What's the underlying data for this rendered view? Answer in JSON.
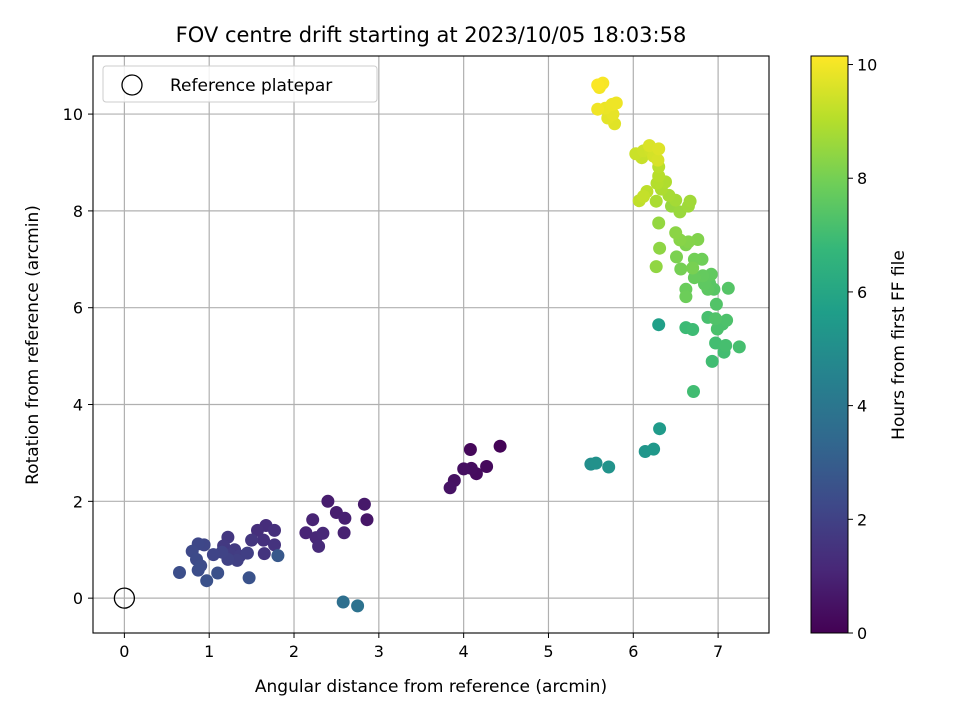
{
  "chart_data": {
    "type": "scatter",
    "title": "FOV centre drift starting at 2023/10/05 18:03:58",
    "xlabel": "Angular distance from reference (arcmin)",
    "ylabel": "Rotation from reference (arcmin)",
    "xlim": [
      -0.37,
      7.6
    ],
    "ylim": [
      -0.72,
      11.2
    ],
    "xticks": [
      0,
      1,
      2,
      3,
      4,
      5,
      6,
      7
    ],
    "yticks": [
      0,
      2,
      4,
      6,
      8,
      10
    ],
    "grid": true,
    "legend": {
      "placement": "upper-left",
      "entries": [
        "Reference platepar"
      ]
    },
    "reference_point": {
      "x": 0,
      "y": 0,
      "label": "Reference platepar"
    },
    "colorbar": {
      "label": "Hours from first FF file",
      "colormap": "viridis",
      "range": [
        0,
        10.15
      ],
      "ticks": [
        0,
        2,
        4,
        6,
        8,
        10
      ]
    },
    "series": [
      {
        "points": [
          {
            "x": 4.43,
            "y": 3.14,
            "c": 0.1
          },
          {
            "x": 4.08,
            "y": 3.07,
            "c": 0.2
          },
          {
            "x": 4.27,
            "y": 2.72,
            "c": 0.25
          },
          {
            "x": 4.15,
            "y": 2.57,
            "c": 0.3
          },
          {
            "x": 4.09,
            "y": 2.68,
            "c": 0.35
          },
          {
            "x": 4.0,
            "y": 2.67,
            "c": 0.4
          },
          {
            "x": 3.89,
            "y": 2.43,
            "c": 0.45
          },
          {
            "x": 3.84,
            "y": 2.28,
            "c": 0.5
          },
          {
            "x": 2.86,
            "y": 1.62,
            "c": 0.6
          },
          {
            "x": 2.83,
            "y": 1.94,
            "c": 0.7
          },
          {
            "x": 2.4,
            "y": 2.0,
            "c": 0.8
          },
          {
            "x": 2.5,
            "y": 1.77,
            "c": 0.85
          },
          {
            "x": 2.6,
            "y": 1.65,
            "c": 0.9
          },
          {
            "x": 2.59,
            "y": 1.35,
            "c": 0.95
          },
          {
            "x": 2.22,
            "y": 1.62,
            "c": 1.0
          },
          {
            "x": 2.14,
            "y": 1.35,
            "c": 1.05
          },
          {
            "x": 2.26,
            "y": 1.25,
            "c": 1.1
          },
          {
            "x": 2.34,
            "y": 1.34,
            "c": 1.15
          },
          {
            "x": 2.29,
            "y": 1.07,
            "c": 1.2
          },
          {
            "x": 1.67,
            "y": 1.5,
            "c": 1.3
          },
          {
            "x": 1.57,
            "y": 1.4,
            "c": 1.35
          },
          {
            "x": 1.77,
            "y": 1.4,
            "c": 1.4
          },
          {
            "x": 1.64,
            "y": 1.2,
            "c": 1.45
          },
          {
            "x": 1.77,
            "y": 1.1,
            "c": 1.5
          },
          {
            "x": 1.65,
            "y": 0.92,
            "c": 1.55
          },
          {
            "x": 1.5,
            "y": 1.2,
            "c": 1.6
          },
          {
            "x": 1.22,
            "y": 1.26,
            "c": 1.65
          },
          {
            "x": 1.17,
            "y": 1.08,
            "c": 1.7
          },
          {
            "x": 1.3,
            "y": 1.0,
            "c": 1.75
          },
          {
            "x": 1.25,
            "y": 0.9,
            "c": 1.8
          },
          {
            "x": 1.36,
            "y": 0.87,
            "c": 1.85
          },
          {
            "x": 1.45,
            "y": 0.93,
            "c": 1.9
          },
          {
            "x": 1.33,
            "y": 0.78,
            "c": 1.95
          },
          {
            "x": 1.22,
            "y": 0.8,
            "c": 2.0
          },
          {
            "x": 1.15,
            "y": 0.95,
            "c": 2.05
          },
          {
            "x": 1.05,
            "y": 0.9,
            "c": 2.1
          },
          {
            "x": 0.94,
            "y": 1.1,
            "c": 2.15
          },
          {
            "x": 0.87,
            "y": 1.12,
            "c": 2.2
          },
          {
            "x": 0.8,
            "y": 0.97,
            "c": 2.25
          },
          {
            "x": 0.85,
            "y": 0.8,
            "c": 2.3
          },
          {
            "x": 0.9,
            "y": 0.67,
            "c": 2.35
          },
          {
            "x": 0.87,
            "y": 0.58,
            "c": 2.4
          },
          {
            "x": 0.65,
            "y": 0.53,
            "c": 2.45
          },
          {
            "x": 1.1,
            "y": 0.52,
            "c": 2.5
          },
          {
            "x": 0.97,
            "y": 0.36,
            "c": 2.55
          },
          {
            "x": 1.47,
            "y": 0.42,
            "c": 2.6
          },
          {
            "x": 1.81,
            "y": 0.88,
            "c": 2.8
          },
          {
            "x": 2.58,
            "y": -0.08,
            "c": 3.7
          },
          {
            "x": 2.75,
            "y": -0.16,
            "c": 3.8
          },
          {
            "x": 5.5,
            "y": 2.77,
            "c": 5.0
          },
          {
            "x": 5.56,
            "y": 2.79,
            "c": 5.1
          },
          {
            "x": 5.71,
            "y": 2.71,
            "c": 5.2
          },
          {
            "x": 6.14,
            "y": 3.03,
            "c": 5.3
          },
          {
            "x": 6.24,
            "y": 3.08,
            "c": 5.4
          },
          {
            "x": 6.31,
            "y": 3.5,
            "c": 5.5
          },
          {
            "x": 6.3,
            "y": 5.65,
            "c": 5.7
          },
          {
            "x": 6.62,
            "y": 5.59,
            "c": 6.9
          },
          {
            "x": 6.7,
            "y": 5.55,
            "c": 6.95
          },
          {
            "x": 6.71,
            "y": 4.27,
            "c": 7.0
          },
          {
            "x": 6.93,
            "y": 4.89,
            "c": 7.0
          },
          {
            "x": 6.97,
            "y": 5.27,
            "c": 7.05
          },
          {
            "x": 7.07,
            "y": 5.08,
            "c": 7.05
          },
          {
            "x": 7.25,
            "y": 5.19,
            "c": 7.1
          },
          {
            "x": 7.09,
            "y": 5.22,
            "c": 7.1
          },
          {
            "x": 6.88,
            "y": 5.8,
            "c": 7.15
          },
          {
            "x": 6.99,
            "y": 5.56,
            "c": 7.2
          },
          {
            "x": 7.05,
            "y": 5.66,
            "c": 7.2
          },
          {
            "x": 7.1,
            "y": 5.74,
            "c": 7.25
          },
          {
            "x": 6.97,
            "y": 5.77,
            "c": 7.3
          },
          {
            "x": 6.98,
            "y": 6.07,
            "c": 7.35
          },
          {
            "x": 7.12,
            "y": 6.4,
            "c": 7.4
          },
          {
            "x": 6.95,
            "y": 6.38,
            "c": 7.45
          },
          {
            "x": 6.9,
            "y": 6.5,
            "c": 7.5
          },
          {
            "x": 6.88,
            "y": 6.38,
            "c": 7.55
          },
          {
            "x": 6.84,
            "y": 6.49,
            "c": 7.6
          },
          {
            "x": 6.92,
            "y": 6.69,
            "c": 7.65
          },
          {
            "x": 6.82,
            "y": 6.66,
            "c": 7.7
          },
          {
            "x": 6.72,
            "y": 6.62,
            "c": 7.75
          },
          {
            "x": 6.62,
            "y": 6.38,
            "c": 7.8
          },
          {
            "x": 6.62,
            "y": 6.23,
            "c": 7.85
          },
          {
            "x": 6.81,
            "y": 7.0,
            "c": 7.9
          },
          {
            "x": 6.72,
            "y": 7.0,
            "c": 7.95
          },
          {
            "x": 6.56,
            "y": 6.8,
            "c": 8.0
          },
          {
            "x": 6.7,
            "y": 6.82,
            "c": 8.05
          },
          {
            "x": 6.51,
            "y": 7.05,
            "c": 8.1
          },
          {
            "x": 6.62,
            "y": 7.3,
            "c": 8.15
          },
          {
            "x": 6.76,
            "y": 7.41,
            "c": 8.2
          },
          {
            "x": 6.65,
            "y": 7.36,
            "c": 8.25
          },
          {
            "x": 6.55,
            "y": 7.4,
            "c": 8.3
          },
          {
            "x": 6.5,
            "y": 7.55,
            "c": 8.35
          },
          {
            "x": 6.31,
            "y": 7.23,
            "c": 8.4
          },
          {
            "x": 6.27,
            "y": 6.85,
            "c": 8.45
          },
          {
            "x": 6.3,
            "y": 7.75,
            "c": 8.5
          },
          {
            "x": 6.45,
            "y": 8.1,
            "c": 8.55
          },
          {
            "x": 6.55,
            "y": 7.98,
            "c": 8.6
          },
          {
            "x": 6.65,
            "y": 8.1,
            "c": 8.65
          },
          {
            "x": 6.67,
            "y": 8.2,
            "c": 8.7
          },
          {
            "x": 6.5,
            "y": 8.22,
            "c": 8.75
          },
          {
            "x": 6.42,
            "y": 8.32,
            "c": 8.8
          },
          {
            "x": 6.27,
            "y": 8.2,
            "c": 8.85
          },
          {
            "x": 6.33,
            "y": 8.45,
            "c": 8.9
          },
          {
            "x": 6.38,
            "y": 8.6,
            "c": 8.95
          },
          {
            "x": 6.28,
            "y": 8.57,
            "c": 9.0
          },
          {
            "x": 6.3,
            "y": 8.72,
            "c": 9.05
          },
          {
            "x": 6.3,
            "y": 8.91,
            "c": 9.1
          },
          {
            "x": 6.16,
            "y": 8.4,
            "c": 9.15
          },
          {
            "x": 6.07,
            "y": 8.21,
            "c": 9.2
          },
          {
            "x": 6.12,
            "y": 8.3,
            "c": 9.25
          },
          {
            "x": 6.1,
            "y": 9.1,
            "c": 9.3
          },
          {
            "x": 6.03,
            "y": 9.18,
            "c": 9.35
          },
          {
            "x": 6.12,
            "y": 9.24,
            "c": 9.4
          },
          {
            "x": 6.2,
            "y": 9.26,
            "c": 9.45
          },
          {
            "x": 6.24,
            "y": 9.13,
            "c": 9.5
          },
          {
            "x": 6.29,
            "y": 9.05,
            "c": 9.55
          },
          {
            "x": 6.19,
            "y": 9.35,
            "c": 9.6
          },
          {
            "x": 6.3,
            "y": 9.28,
            "c": 9.65
          },
          {
            "x": 5.78,
            "y": 9.8,
            "c": 9.7
          },
          {
            "x": 5.7,
            "y": 9.92,
            "c": 9.75
          },
          {
            "x": 5.76,
            "y": 10.0,
            "c": 9.8
          },
          {
            "x": 5.67,
            "y": 10.12,
            "c": 9.85
          },
          {
            "x": 5.75,
            "y": 10.2,
            "c": 9.9
          },
          {
            "x": 5.8,
            "y": 10.23,
            "c": 9.92
          },
          {
            "x": 5.58,
            "y": 10.1,
            "c": 9.95
          },
          {
            "x": 5.6,
            "y": 10.55,
            "c": 10.0
          },
          {
            "x": 5.64,
            "y": 10.64,
            "c": 10.05
          },
          {
            "x": 5.58,
            "y": 10.6,
            "c": 10.1
          }
        ]
      }
    ]
  }
}
